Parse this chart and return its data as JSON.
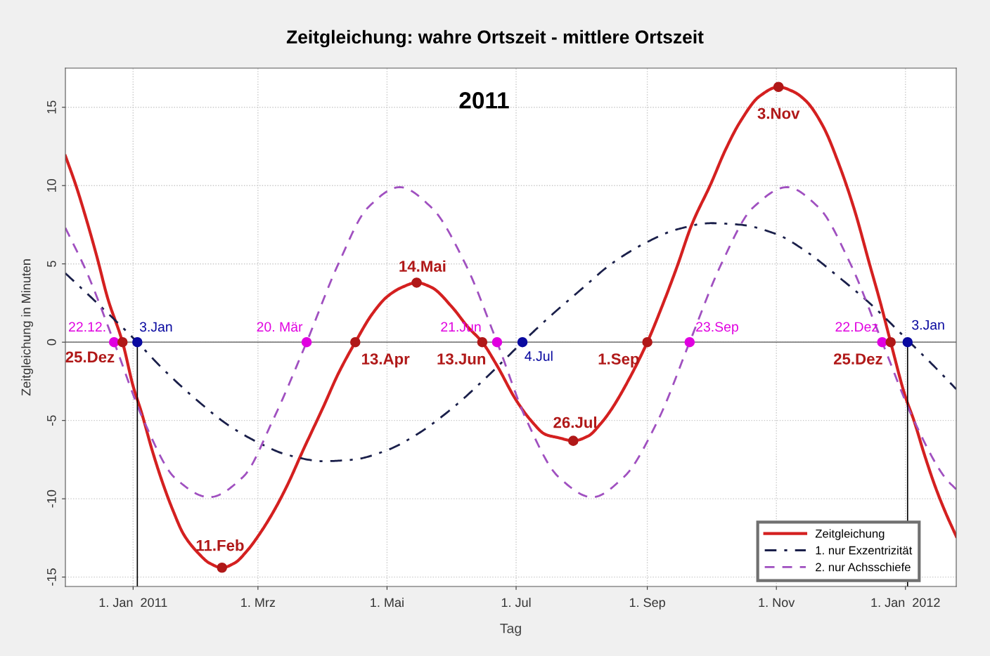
{
  "chart_data": {
    "type": "line",
    "title": "Zeitgleichung: wahre Ortszeit - mittlere Ortszeit",
    "xlabel": "Tag",
    "ylabel": "Zeitgleichung in Minuten",
    "annotations": [
      "2011",
      {
        "text": "22.12.",
        "x": "2010-12-23",
        "y": 0
      },
      {
        "text": "20. Mär",
        "x": "2011-03-24",
        "y": 0
      },
      {
        "text": "21.Jun",
        "x": "2011-06-22",
        "y": 0
      },
      {
        "text": "23.Sep",
        "x": "2011-09-21",
        "y": 0
      },
      {
        "text": "22.Dez",
        "x": "2011-12-21",
        "y": 0
      },
      {
        "text": "3.Jan",
        "x": "2011-01-03",
        "y": 0
      },
      {
        "text": "4.Jul",
        "x": "2011-07-04",
        "y": 0
      },
      {
        "text": "3.Jan",
        "x": "2012-01-02",
        "y": 0
      },
      {
        "text": "25.Dez",
        "x": "2010-12-27",
        "y": 0
      },
      {
        "text": "11.Feb",
        "x": "2011-02-12",
        "y": -14.4
      },
      {
        "text": "13.Apr",
        "x": "2011-04-16",
        "y": 0
      },
      {
        "text": "14.Mai",
        "x": "2011-05-15",
        "y": 3.8
      },
      {
        "text": "13.Jun",
        "x": "2011-06-15",
        "y": 0
      },
      {
        "text": "26.Jul",
        "x": "2011-07-28",
        "y": -6.3
      },
      {
        "text": "1.Sep",
        "x": "2011-09-01",
        "y": 0
      },
      {
        "text": "3.Nov",
        "x": "2011-11-02",
        "y": 16.3
      },
      {
        "text": "25.Dez",
        "x": "2011-12-25",
        "y": 0
      }
    ],
    "xlim": [
      "2010-11-30",
      "2012-01-25"
    ],
    "ylim": [
      -15.6,
      17.5
    ],
    "xticks": [
      {
        "value": "2011-01-01",
        "label": "1. Jan  2011"
      },
      {
        "value": "2011-03-01",
        "label": "1. Mrz"
      },
      {
        "value": "2011-05-01",
        "label": "1. Mai"
      },
      {
        "value": "2011-07-01",
        "label": "1. Jul"
      },
      {
        "value": "2011-09-01",
        "label": "1. Sep"
      },
      {
        "value": "2011-11-01",
        "label": "1. Nov"
      },
      {
        "value": "2012-01-01",
        "label": "1. Jan  2012"
      }
    ],
    "yticks": [
      -15,
      -10,
      -5,
      0,
      5,
      10,
      15
    ],
    "grid": true,
    "legend": "bottom right",
    "ref_lines": [
      {
        "axis": "y",
        "value": 0,
        "color": "#808080"
      }
    ],
    "series": [
      {
        "name": "Zeitgleichung",
        "type": "line",
        "color": "#d42020",
        "line_style": "solid",
        "x": [
          "2010-11-30",
          "2010-12-05",
          "2010-12-10",
          "2010-12-15",
          "2010-12-20",
          "2010-12-27",
          "2011-01-01",
          "2011-01-05",
          "2011-01-10",
          "2011-01-15",
          "2011-01-20",
          "2011-01-25",
          "2011-02-01",
          "2011-02-06",
          "2011-02-12",
          "2011-02-18",
          "2011-02-24",
          "2011-03-01",
          "2011-03-08",
          "2011-03-15",
          "2011-03-22",
          "2011-04-01",
          "2011-04-08",
          "2011-04-16",
          "2011-04-24",
          "2011-05-01",
          "2011-05-08",
          "2011-05-15",
          "2011-05-22",
          "2011-06-01",
          "2011-06-08",
          "2011-06-15",
          "2011-06-22",
          "2011-07-01",
          "2011-07-08",
          "2011-07-15",
          "2011-07-21",
          "2011-07-28",
          "2011-08-04",
          "2011-08-10",
          "2011-08-15",
          "2011-08-22",
          "2011-09-01",
          "2011-09-08",
          "2011-09-15",
          "2011-09-22",
          "2011-10-01",
          "2011-10-08",
          "2011-10-15",
          "2011-10-24",
          "2011-11-02",
          "2011-11-09",
          "2011-11-15",
          "2011-11-23",
          "2011-12-01",
          "2011-12-08",
          "2011-12-15",
          "2011-12-20",
          "2011-12-25",
          "2012-01-01",
          "2012-01-05",
          "2012-01-10",
          "2012-01-15",
          "2012-01-20",
          "2012-01-25"
        ],
        "values": [
          11.9,
          10.0,
          7.8,
          5.4,
          2.8,
          0,
          -2.8,
          -4.5,
          -6.9,
          -9.0,
          -10.8,
          -12.3,
          -13.5,
          -14.1,
          -14.4,
          -14.1,
          -13.3,
          -12.4,
          -10.9,
          -9.1,
          -7.0,
          -4.1,
          -2.0,
          0,
          1.8,
          2.9,
          3.5,
          3.8,
          3.5,
          2.2,
          1.0,
          0,
          -1.5,
          -3.7,
          -5.0,
          -5.9,
          -6.1,
          -6.3,
          -6.0,
          -5.2,
          -4.3,
          -2.7,
          0,
          2.3,
          4.8,
          7.5,
          10.1,
          12.3,
          14.1,
          15.7,
          16.3,
          16.0,
          15.4,
          13.8,
          11.2,
          8.4,
          5.0,
          2.6,
          0,
          -3.5,
          -5.0,
          -7.2,
          -9.2,
          -10.9,
          -12.4
        ]
      },
      {
        "name": "1. nur Exzentrizität",
        "type": "line",
        "color": "#1a1f4a",
        "line_style": "dashdot",
        "x": [
          "2010-11-30",
          "2010-12-15",
          "2011-01-03",
          "2011-01-15",
          "2011-02-01",
          "2011-02-15",
          "2011-03-01",
          "2011-03-15",
          "2011-04-01",
          "2011-04-15",
          "2011-05-01",
          "2011-05-15",
          "2011-06-01",
          "2011-06-15",
          "2011-07-04",
          "2011-07-15",
          "2011-08-01",
          "2011-08-15",
          "2011-09-01",
          "2011-09-15",
          "2011-10-01",
          "2011-10-15",
          "2011-11-01",
          "2011-11-15",
          "2011-12-01",
          "2011-12-15",
          "2012-01-03",
          "2012-01-15",
          "2012-01-25"
        ],
        "values": [
          4.4,
          2.5,
          0,
          -1.7,
          -3.8,
          -5.3,
          -6.4,
          -7.2,
          -7.6,
          -7.5,
          -6.9,
          -5.9,
          -4.2,
          -2.5,
          0,
          1.4,
          3.4,
          5.0,
          6.4,
          7.2,
          7.6,
          7.5,
          6.9,
          5.8,
          4.1,
          2.5,
          0,
          -1.6,
          -3.0
        ]
      },
      {
        "name": "2. nur Achsschiefe",
        "type": "line",
        "color": "#a050c0",
        "line_style": "dashed",
        "x": [
          "2010-11-30",
          "2010-12-10",
          "2010-12-23",
          "2011-01-06",
          "2011-01-21",
          "2011-02-06",
          "2011-02-22",
          "2011-03-08",
          "2011-03-24",
          "2011-04-08",
          "2011-04-22",
          "2011-05-07",
          "2011-05-22",
          "2011-06-07",
          "2011-06-22",
          "2011-07-06",
          "2011-07-21",
          "2011-08-06",
          "2011-08-21",
          "2011-09-06",
          "2011-09-21",
          "2011-10-06",
          "2011-10-21",
          "2011-11-06",
          "2011-11-21",
          "2011-12-06",
          "2011-12-21",
          "2012-01-05",
          "2012-01-20",
          "2012-01-25"
        ],
        "values": [
          7.3,
          4.5,
          0,
          -5.0,
          -8.7,
          -9.9,
          -8.6,
          -5.0,
          0,
          5.0,
          8.6,
          9.9,
          8.6,
          5.0,
          0,
          -5.0,
          -8.6,
          -9.9,
          -8.6,
          -5.0,
          0,
          5.0,
          8.6,
          9.9,
          8.6,
          5.0,
          0,
          -5.0,
          -8.7,
          -9.4
        ]
      },
      {
        "type": "line",
        "color": "#000000",
        "line_style": "solid",
        "x": [
          "2011-01-03",
          "2011-01-03"
        ],
        "values": [
          0,
          -15.6
        ]
      },
      {
        "type": "line",
        "color": "#000000",
        "line_style": "solid",
        "x": [
          "2012-01-02",
          "2012-01-02"
        ],
        "values": [
          0,
          -15.6
        ]
      },
      {
        "type": "scatter",
        "color": "#e000e0",
        "x": [
          "2010-12-23",
          "2011-03-24",
          "2011-06-22",
          "2011-09-21",
          "2011-12-21"
        ],
        "values": [
          0,
          0,
          0,
          0,
          0
        ]
      },
      {
        "type": "scatter",
        "color": "#0a0aa0",
        "x": [
          "2011-01-03",
          "2011-07-04",
          "2012-01-02"
        ],
        "values": [
          0,
          0,
          0
        ]
      },
      {
        "type": "scatter",
        "color": "#b01818",
        "x": [
          "2010-12-27",
          "2011-02-12",
          "2011-04-16",
          "2011-05-15",
          "2011-06-15",
          "2011-07-28",
          "2011-09-01",
          "2011-11-02",
          "2011-12-25"
        ],
        "values": [
          0,
          -14.4,
          0,
          3.8,
          0,
          -6.3,
          0,
          16.3,
          0
        ]
      }
    ]
  }
}
